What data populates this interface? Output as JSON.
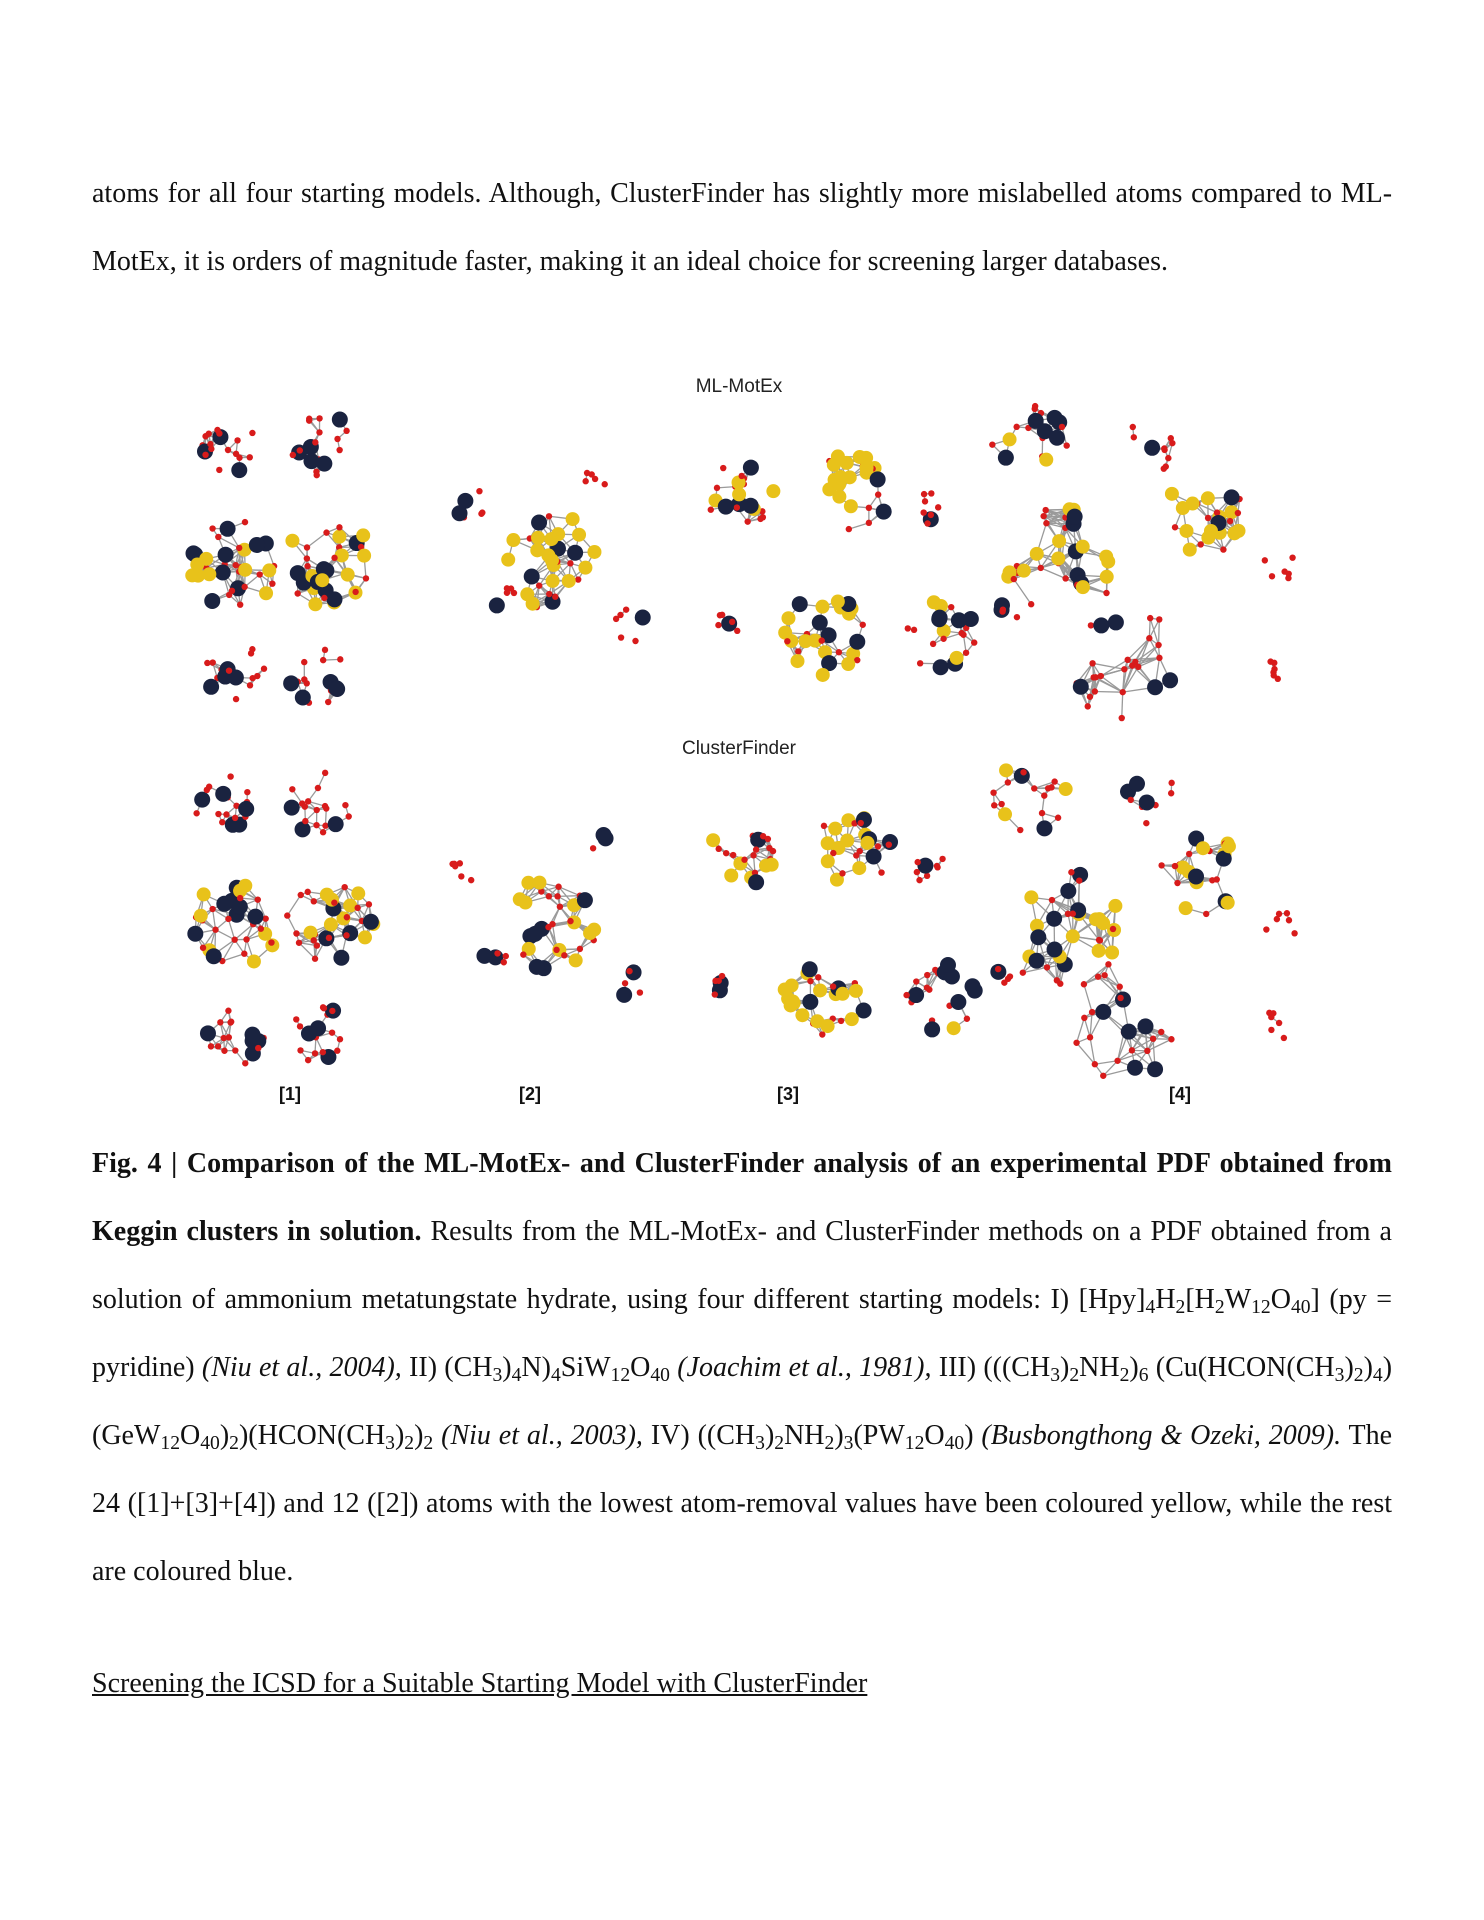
{
  "intro_paragraph": {
    "lines": [
      "atoms for all four starting models. Although, ClusterFinder has slightly more mislabelled atoms compared to",
      "ML-MotEx, it is orders of magnitude faster, making it an ideal choice for screening larger databases."
    ]
  },
  "figure": {
    "row_titles": [
      "ML-MotEx",
      "ClusterFinder"
    ],
    "panel_labels": [
      "[1]",
      "[2]",
      "[3]",
      "[4]"
    ],
    "atom_colors": {
      "yellow": "#e8c21a",
      "blue": "#1a2340",
      "red": "#d81b1b",
      "bond": "#9a9a9a"
    }
  },
  "caption": {
    "bold": "Fig. 4 | Comparison of the ML-MotEx- and ClusterFinder analysis of an experimental PDF obtained from Keggin clusters in solution.",
    "t1": " Results from the ML-MotEx- and ClusterFinder methods on a PDF obtained from a solution of ammonium metatungstate hydrate, using four different starting models: I) [Hpy]",
    "t2": "4",
    "t3": "H",
    "t4": "2",
    "t5": "[H",
    "t6": "2",
    "t7": "W",
    "t8": "12",
    "t9": "O",
    "t10": "40",
    "t11": "] (py = pyridine) ",
    "i1": "(Niu et al., 2004),",
    "t12": " II) (CH",
    "t13": "3",
    "t14": ")",
    "t15": "4",
    "t16": "N)",
    "t17": "4",
    "t18": "SiW",
    "t19": "12",
    "t20": "O",
    "t21": "40",
    "t22": " ",
    "i2": "(Joachim et al., 1981),",
    "t23": " III) (((CH",
    "t24": "3",
    "t25": ")",
    "t26": "2",
    "t27": "NH",
    "t28": "2",
    "t29": ")",
    "t30": "6",
    "t31": " (Cu(HCON(CH",
    "t32": "3",
    "t33": ")",
    "t34": "2",
    "t35": ")",
    "t36": "4",
    "t37": ")(GeW",
    "t38": "12",
    "t39": "O",
    "t40": "40",
    "t41": ")",
    "t42": "2",
    "t43": ")(HCON(CH",
    "t44": "3",
    "t45": ")",
    "t46": "2",
    "t47": ")",
    "t48": "2",
    "t49": " ",
    "i3": "(Niu et al., 2003),",
    "t50": " IV) ((CH",
    "t51": "3",
    "t52": ")",
    "t53": "2",
    "t54": "NH",
    "t55": "2",
    "t56": ")",
    "t57": "3",
    "t58": "(PW",
    "t59": "12",
    "t60": "O",
    "t61": "40",
    "t62": ") ",
    "i4": "(Busbongthong & Ozeki, 2009).",
    "t63": " The 24 ([1]+[3]+[4]) and 12 ([2]) atoms with the lowest atom-removal values have been coloured yellow, while the rest are coloured blue."
  },
  "section_heading": "Screening the ICSD for a Suitable Starting Model with ClusterFinder"
}
